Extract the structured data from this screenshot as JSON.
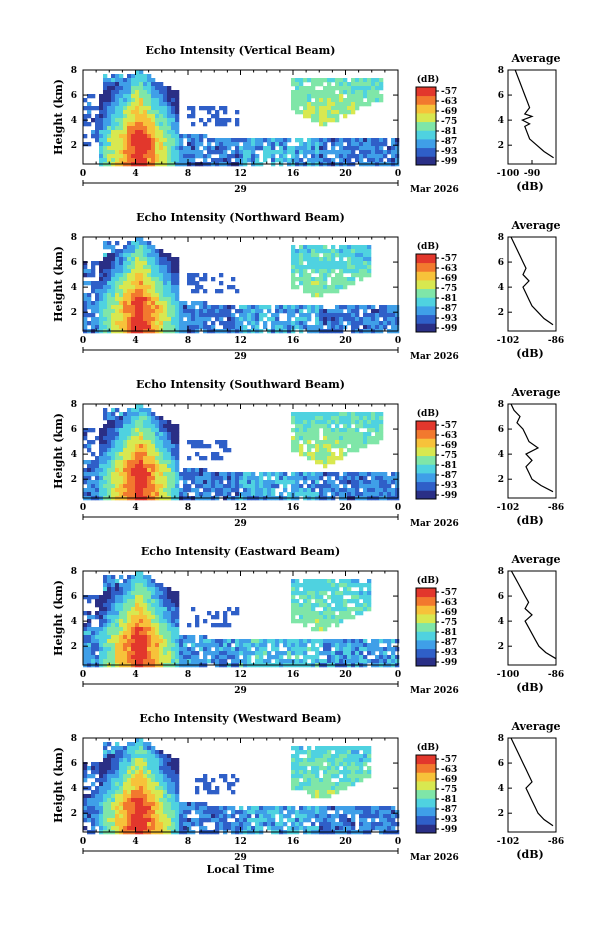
{
  "figure": {
    "xlabel_bottom": "Local Time",
    "date_day": "29",
    "date_month": "Mar 2026",
    "colorbar_unit": "(dB)",
    "avg_title": "Average",
    "avg_unit": "(dB)"
  },
  "colorbar": {
    "ticks": [
      "-57",
      "-63",
      "-69",
      "-75",
      "-81",
      "-87",
      "-93",
      "-99"
    ],
    "colors": [
      "#2a2f86",
      "#2f5fc8",
      "#3f9fe8",
      "#4fd2e0",
      "#7fe6a8",
      "#d8e850",
      "#f7c23a",
      "#f2792e",
      "#e2372c"
    ]
  },
  "chart_data": [
    {
      "type": "heatmap",
      "title": "Echo Intensity (Vertical Beam)",
      "ylabel": "Height (km)",
      "xlabel": "",
      "x_ticks": [
        "0",
        "4",
        "8",
        "12",
        "16",
        "20",
        "0"
      ],
      "y_ticks": [
        "2",
        "4",
        "6",
        "8"
      ],
      "xlim": [
        0,
        24
      ],
      "ylim": [
        0.5,
        8
      ],
      "clim": [
        -99,
        -57
      ],
      "features": [
        {
          "name": "convective-core",
          "time": 4.3,
          "height_top": 6.5,
          "peak_db": -57
        },
        {
          "name": "boundary-layer",
          "time_range": [
            2,
            24
          ],
          "height_top": 2.5,
          "mean_db": -90
        },
        {
          "name": "upper-cloud",
          "time_range": [
            16,
            23
          ],
          "height_range": [
            3.5,
            7.5
          ],
          "mean_db": -80
        }
      ],
      "average_profile": {
        "xlim": [
          -100,
          -80
        ],
        "x_ticks": [
          "-100",
          "-90"
        ],
        "y_ticks": [
          "2",
          "4",
          "6",
          "8"
        ],
        "heights": [
          8,
          7.5,
          7,
          6.5,
          6,
          5.5,
          5,
          4.5,
          4.3,
          4,
          3.7,
          3.5,
          3,
          2.5,
          2,
          1.5,
          1
        ],
        "values": [
          -97,
          -96,
          -95,
          -94,
          -93,
          -92,
          -91,
          -93,
          -90,
          -94,
          -91,
          -93,
          -92,
          -91,
          -88,
          -85,
          -81
        ]
      }
    },
    {
      "type": "heatmap",
      "title": "Echo Intensity (Northward Beam)",
      "ylabel": "Height (km)",
      "xlabel": "",
      "x_ticks": [
        "0",
        "4",
        "8",
        "12",
        "16",
        "20",
        "0"
      ],
      "y_ticks": [
        "2",
        "4",
        "6",
        "8"
      ],
      "xlim": [
        0,
        24
      ],
      "ylim": [
        0.5,
        8
      ],
      "clim": [
        -99,
        -57
      ],
      "features": [
        {
          "name": "convective-core",
          "time": 4.3,
          "height_top": 6.5,
          "peak_db": -57
        },
        {
          "name": "boundary-layer",
          "time_range": [
            0,
            24
          ],
          "height_top": 2.5,
          "mean_db": -90
        },
        {
          "name": "upper-cloud",
          "time_range": [
            16,
            22
          ],
          "height_range": [
            3,
            7.5
          ],
          "mean_db": -82
        }
      ],
      "average_profile": {
        "xlim": [
          -102,
          -86
        ],
        "x_ticks": [
          "-102",
          "-86"
        ],
        "y_ticks": [
          "2",
          "4",
          "6",
          "8"
        ],
        "heights": [
          8,
          7.5,
          7,
          6.5,
          6,
          5.5,
          5,
          4.5,
          4,
          3.5,
          3,
          2.5,
          2,
          1.5,
          1
        ],
        "values": [
          -101,
          -100,
          -99,
          -98,
          -97,
          -96,
          -97,
          -95,
          -97,
          -96,
          -95,
          -94,
          -92,
          -90,
          -87
        ]
      }
    },
    {
      "type": "heatmap",
      "title": "Echo Intensity (Southward Beam)",
      "ylabel": "Height (km)",
      "xlabel": "",
      "x_ticks": [
        "0",
        "4",
        "8",
        "12",
        "16",
        "20",
        "0"
      ],
      "y_ticks": [
        "2",
        "4",
        "6",
        "8"
      ],
      "xlim": [
        0,
        24
      ],
      "ylim": [
        0.5,
        8
      ],
      "clim": [
        -99,
        -57
      ],
      "features": [
        {
          "name": "convective-core",
          "time": 4.3,
          "height_top": 6.5,
          "peak_db": -57
        },
        {
          "name": "boundary-layer",
          "time_range": [
            0,
            24
          ],
          "height_top": 2.5,
          "mean_db": -90
        },
        {
          "name": "upper-cloud",
          "time_range": [
            16,
            23
          ],
          "height_range": [
            3,
            7.5
          ],
          "mean_db": -80
        }
      ],
      "average_profile": {
        "xlim": [
          -102,
          -86
        ],
        "x_ticks": [
          "-102",
          "-86"
        ],
        "y_ticks": [
          "2",
          "4",
          "6",
          "8"
        ],
        "heights": [
          8,
          7.5,
          7,
          6.5,
          6,
          5.5,
          5,
          4.5,
          4,
          3.5,
          3,
          2.5,
          2,
          1.5,
          1
        ],
        "values": [
          -101,
          -100,
          -98,
          -99,
          -97,
          -96,
          -95,
          -92,
          -96,
          -94,
          -96,
          -95,
          -94,
          -91,
          -87
        ]
      }
    },
    {
      "type": "heatmap",
      "title": "Echo Intensity (Eastward Beam)",
      "ylabel": "Height (km)",
      "xlabel": "",
      "x_ticks": [
        "0",
        "4",
        "8",
        "12",
        "16",
        "20",
        "0"
      ],
      "y_ticks": [
        "2",
        "4",
        "6",
        "8"
      ],
      "xlim": [
        0,
        24
      ],
      "ylim": [
        0.5,
        8
      ],
      "clim": [
        -99,
        -57
      ],
      "features": [
        {
          "name": "convective-core",
          "time": 4.3,
          "height_top": 6.5,
          "peak_db": -57
        },
        {
          "name": "boundary-layer",
          "time_range": [
            0,
            24
          ],
          "height_top": 2.5,
          "mean_db": -88
        },
        {
          "name": "upper-cloud",
          "time_range": [
            16,
            22
          ],
          "height_range": [
            3,
            7.5
          ],
          "mean_db": -82
        }
      ],
      "average_profile": {
        "xlim": [
          -100,
          -86
        ],
        "x_ticks": [
          "-100",
          "-86"
        ],
        "y_ticks": [
          "2",
          "4",
          "6",
          "8"
        ],
        "heights": [
          8,
          7.5,
          7,
          6.5,
          6,
          5.5,
          5,
          4.5,
          4,
          3.5,
          3,
          2.5,
          2,
          1.5,
          1
        ],
        "values": [
          -99,
          -98,
          -97,
          -96,
          -95,
          -94,
          -95,
          -93,
          -95,
          -94,
          -93,
          -92,
          -91,
          -89,
          -86
        ]
      }
    },
    {
      "type": "heatmap",
      "title": "Echo Intensity (Westward Beam)",
      "ylabel": "Height (km)",
      "xlabel": "Local Time",
      "x_ticks": [
        "0",
        "4",
        "8",
        "12",
        "16",
        "20",
        "0"
      ],
      "y_ticks": [
        "2",
        "4",
        "6",
        "8"
      ],
      "xlim": [
        0,
        24
      ],
      "ylim": [
        0.5,
        8
      ],
      "clim": [
        -99,
        -57
      ],
      "features": [
        {
          "name": "convective-core",
          "time": 4.3,
          "height_top": 6.5,
          "peak_db": -57
        },
        {
          "name": "boundary-layer",
          "time_range": [
            0,
            24
          ],
          "height_top": 2.5,
          "mean_db": -90
        },
        {
          "name": "upper-cloud",
          "time_range": [
            16,
            22
          ],
          "height_range": [
            3,
            7.5
          ],
          "mean_db": -82
        }
      ],
      "average_profile": {
        "xlim": [
          -102,
          -86
        ],
        "x_ticks": [
          "-102",
          "-86"
        ],
        "y_ticks": [
          "2",
          "4",
          "6",
          "8"
        ],
        "heights": [
          8,
          7.5,
          7,
          6.5,
          6,
          5.5,
          5,
          4.5,
          4,
          3.5,
          3,
          2.5,
          2,
          1.5,
          1
        ],
        "values": [
          -101,
          -100,
          -99,
          -98,
          -97,
          -96,
          -95,
          -94,
          -96,
          -95,
          -94,
          -93,
          -92,
          -90,
          -87
        ]
      }
    }
  ]
}
